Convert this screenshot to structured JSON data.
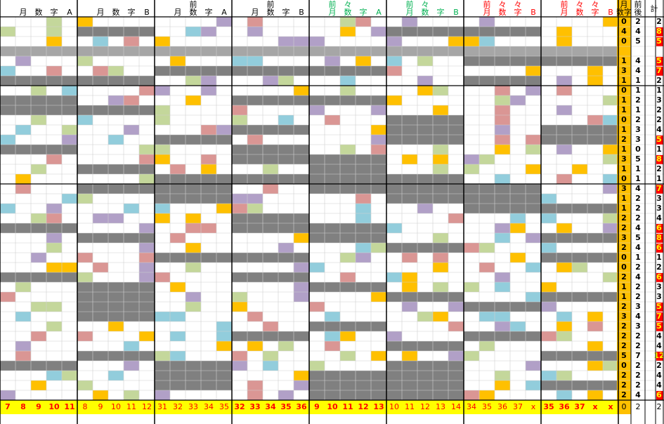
{
  "blocks": [
    {
      "header_top": [
        null,
        null,
        null,
        null,
        null
      ],
      "header": [
        null,
        "月",
        "数",
        "字",
        "A"
      ],
      "header_color": "#000000",
      "footer": [
        7,
        8,
        9,
        10,
        11
      ],
      "footer_bold": true
    },
    {
      "header_top": [
        null,
        null,
        null,
        null,
        null
      ],
      "header": [
        null,
        "月",
        "数",
        "字",
        "B"
      ],
      "header_color": "#000000",
      "footer": [
        8,
        9,
        10,
        11,
        12
      ],
      "footer_bold": false
    },
    {
      "header_top": [
        null,
        null,
        "前",
        null,
        null
      ],
      "header": [
        null,
        "月",
        "数",
        "字",
        "A"
      ],
      "header_color": "#000000",
      "footer": [
        31,
        32,
        33,
        34,
        35
      ],
      "footer_bold": false
    },
    {
      "header_top": [
        null,
        null,
        "前",
        null,
        null
      ],
      "header": [
        null,
        "月",
        "数",
        "字",
        "B"
      ],
      "header_color": "#000000",
      "footer": [
        32,
        33,
        34,
        35,
        36
      ],
      "footer_bold": true
    },
    {
      "header_top": [
        null,
        "前",
        "々",
        null,
        null
      ],
      "header": [
        null,
        "月",
        "数",
        "字",
        "A"
      ],
      "header_color": "#00b050",
      "footer": [
        9,
        10,
        11,
        12,
        13
      ],
      "footer_bold": true
    },
    {
      "header_top": [
        null,
        "前",
        "々",
        null,
        null
      ],
      "header": [
        null,
        "月",
        "数",
        "字",
        "B"
      ],
      "header_color": "#00b050",
      "footer": [
        10,
        11,
        12,
        13,
        14
      ],
      "footer_bold": false
    },
    {
      "header_top": [
        null,
        "前",
        "々",
        "々",
        null
      ],
      "header": [
        null,
        "月",
        "数",
        "字",
        "B"
      ],
      "header_color": "#ff0000",
      "footer": [
        34,
        35,
        36,
        37,
        "x"
      ],
      "footer_bold": false
    },
    {
      "header_top": [
        null,
        "前",
        "々",
        "々",
        null
      ],
      "header": [
        null,
        "月",
        "数",
        "字",
        "B"
      ],
      "header_color": "#ff0000",
      "footer": [
        35,
        36,
        37,
        "x",
        "x"
      ],
      "footer_bold": true
    }
  ],
  "summary": {
    "header_month": [
      "月",
      "数字"
    ],
    "header_prepost": [
      "前",
      "後"
    ],
    "header_total": "計",
    "rows": [
      [
        0,
        2,
        2
      ],
      [
        4,
        4,
        8
      ],
      [
        0,
        5,
        5
      ],
      [
        1,
        4,
        5
      ],
      [
        3,
        4,
        7
      ],
      [
        1,
        1,
        2
      ],
      [
        0,
        1,
        1
      ],
      [
        1,
        2,
        3
      ],
      [
        1,
        1,
        2
      ],
      [
        0,
        2,
        2
      ],
      [
        1,
        3,
        4
      ],
      [
        2,
        3,
        5
      ],
      [
        1,
        0,
        1
      ],
      [
        3,
        5,
        8
      ],
      [
        1,
        1,
        2
      ],
      [
        0,
        1,
        1
      ],
      [
        3,
        4,
        7
      ],
      [
        1,
        2,
        3
      ],
      [
        1,
        2,
        3
      ],
      [
        2,
        2,
        4
      ],
      [
        2,
        4,
        6
      ],
      [
        3,
        5,
        8
      ],
      [
        2,
        4,
        6
      ],
      [
        0,
        1,
        1
      ],
      [
        0,
        2,
        2
      ],
      [
        2,
        4,
        6
      ],
      [
        1,
        2,
        3
      ],
      [
        1,
        2,
        3
      ],
      [
        2,
        3,
        5
      ],
      [
        3,
        4,
        7
      ],
      [
        2,
        3,
        5
      ],
      [
        2,
        2,
        4
      ],
      [
        2,
        2,
        4
      ],
      [
        5,
        7,
        12
      ],
      [
        0,
        2,
        2
      ],
      [
        2,
        2,
        4
      ],
      [
        2,
        2,
        4
      ],
      [
        2,
        4,
        6
      ]
    ],
    "highlight": [
      false,
      true,
      true,
      true,
      true,
      false,
      false,
      false,
      false,
      false,
      false,
      true,
      false,
      true,
      false,
      false,
      true,
      false,
      false,
      false,
      true,
      true,
      true,
      false,
      false,
      true,
      false,
      false,
      true,
      true,
      true,
      false,
      false,
      true,
      false,
      false,
      false,
      true
    ],
    "footer": [
      0,
      2,
      2
    ]
  }
}
